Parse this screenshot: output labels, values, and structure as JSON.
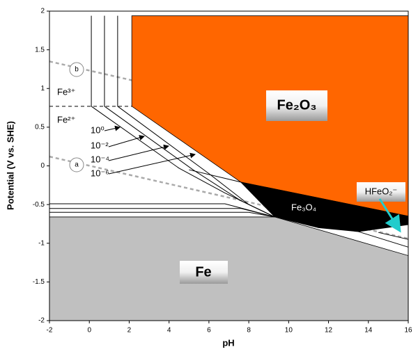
{
  "chart_data": {
    "type": "pourbaix",
    "x_label": "pH",
    "y_label": "Potential (V vs. SHE)",
    "xlim": [
      -2,
      16
    ],
    "ylim": [
      -2,
      2
    ],
    "xticks": [
      -2,
      0,
      2,
      4,
      6,
      8,
      10,
      12,
      14,
      16
    ],
    "yticks": [
      -2,
      -1.5,
      -1,
      -0.5,
      0,
      0.5,
      1,
      1.5,
      2
    ],
    "regions": [
      {
        "name": "Fe",
        "color": "#c0c0c0",
        "x": [
          -2,
          16,
          16,
          9.3,
          -2
        ],
        "y": [
          -2,
          -2,
          -1.16,
          -0.66,
          -0.66
        ]
      },
      {
        "name": "Fe₂O₃",
        "color": "#ff6600",
        "x": [
          2.13,
          16,
          16,
          7.6,
          2.13
        ],
        "y": [
          1.94,
          1.94,
          -0.65,
          -0.21,
          0.77
        ]
      },
      {
        "name": "Fe₃O₄",
        "color": "#000000",
        "x": [
          7.6,
          16,
          16,
          13.5,
          11.5,
          9.3
        ],
        "y": [
          -0.21,
          -0.65,
          -0.76,
          -0.85,
          -0.8,
          -0.66
        ]
      }
    ],
    "lines": [
      {
        "color": "#aaaaaa",
        "dashed": true,
        "x": [
          -2,
          16
        ],
        "y": [
          0.12,
          -0.94
        ]
      },
      {
        "color": "#aaaaaa",
        "dashed": true,
        "x": [
          -2,
          16
        ],
        "y": [
          1.35,
          0.29
        ]
      },
      {
        "color": "#000000",
        "dashed": true,
        "x": [
          -2,
          2.13
        ],
        "y": [
          0.77,
          0.77
        ]
      },
      {
        "color": "#000000",
        "dashed": false,
        "x": [
          0.1,
          0.1,
          4.5,
          6.8,
          9.3
        ],
        "y": [
          1.94,
          0.77,
          -0.03,
          -0.35,
          -0.66
        ]
      },
      {
        "color": "#000000",
        "dashed": false,
        "x": [
          0.76,
          0.76,
          5.2,
          7.6,
          9.3
        ],
        "y": [
          1.94,
          0.77,
          -0.05,
          -0.45,
          -0.66
        ]
      },
      {
        "color": "#000000",
        "dashed": false,
        "x": [
          1.42,
          1.42,
          6.0,
          8.0,
          9.3
        ],
        "y": [
          1.94,
          0.77,
          -0.1,
          -0.5,
          -0.66
        ]
      },
      {
        "color": "#000000",
        "dashed": false,
        "x": [
          -2,
          6.8,
          9.3
        ],
        "y": [
          -0.49,
          -0.49,
          -0.66
        ]
      },
      {
        "color": "#000000",
        "dashed": false,
        "x": [
          -2,
          7.6,
          9.3
        ],
        "y": [
          -0.55,
          -0.55,
          -0.66
        ]
      },
      {
        "color": "#000000",
        "dashed": false,
        "x": [
          -2,
          8.0,
          9.3
        ],
        "y": [
          -0.6,
          -0.6,
          -0.66
        ]
      },
      {
        "color": "#000000",
        "dashed": false,
        "x": [
          5.0,
          7.6
        ],
        "y": [
          -0.05,
          -0.21
        ]
      },
      {
        "color": "#000000",
        "dashed": false,
        "x": [
          13.5,
          16
        ],
        "y": [
          -0.85,
          -1.05
        ]
      },
      {
        "color": "#000000",
        "dashed": false,
        "x": [
          14.5,
          16
        ],
        "y": [
          -0.86,
          -0.95
        ]
      }
    ],
    "annotations": [
      "HFeO₂⁻",
      "Fe³⁺",
      "Fe²⁺",
      "10⁰",
      "10⁻²",
      "10⁻⁴",
      "10⁻⁶",
      "a",
      "b"
    ]
  }
}
